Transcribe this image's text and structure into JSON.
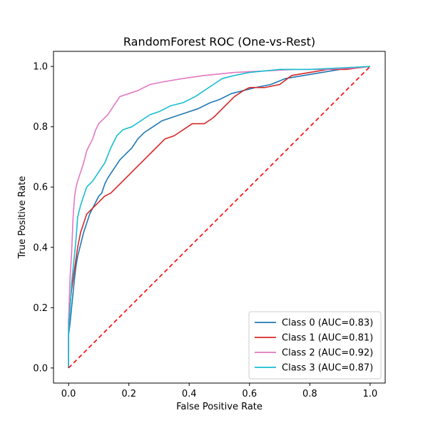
{
  "chart_data": {
    "type": "line",
    "title": "RandomForest ROC (One-vs-Rest)",
    "xlabel": "False Positive Rate",
    "ylabel": "True Positive Rate",
    "xlim": [
      -0.05,
      1.05
    ],
    "ylim": [
      -0.05,
      1.05
    ],
    "x_ticks": [
      0.0,
      0.2,
      0.4,
      0.6,
      0.8,
      1.0
    ],
    "y_ticks": [
      0.0,
      0.2,
      0.4,
      0.6,
      0.8,
      1.0
    ],
    "x_tick_labels": [
      "0.0",
      "0.2",
      "0.4",
      "0.6",
      "0.8",
      "1.0"
    ],
    "y_tick_labels": [
      "0.0",
      "0.2",
      "0.4",
      "0.6",
      "0.8",
      "1.0"
    ],
    "grid": false,
    "legend_position": "lower-right",
    "series": [
      {
        "name": "Class 0 (AUC=0.83)",
        "color": "#1f77b4",
        "points": [
          [
            0,
            0
          ],
          [
            0,
            0.11
          ],
          [
            0.005,
            0.15
          ],
          [
            0.01,
            0.2
          ],
          [
            0.015,
            0.25
          ],
          [
            0.02,
            0.3
          ],
          [
            0.025,
            0.34
          ],
          [
            0.03,
            0.37
          ],
          [
            0.04,
            0.41
          ],
          [
            0.05,
            0.45
          ],
          [
            0.06,
            0.48
          ],
          [
            0.07,
            0.51
          ],
          [
            0.08,
            0.53
          ],
          [
            0.09,
            0.55
          ],
          [
            0.1,
            0.57
          ],
          [
            0.11,
            0.58
          ],
          [
            0.12,
            0.61
          ],
          [
            0.13,
            0.63
          ],
          [
            0.15,
            0.66
          ],
          [
            0.17,
            0.69
          ],
          [
            0.19,
            0.71
          ],
          [
            0.21,
            0.73
          ],
          [
            0.23,
            0.76
          ],
          [
            0.25,
            0.78
          ],
          [
            0.28,
            0.8
          ],
          [
            0.31,
            0.82
          ],
          [
            0.34,
            0.83
          ],
          [
            0.37,
            0.84
          ],
          [
            0.4,
            0.85
          ],
          [
            0.43,
            0.86
          ],
          [
            0.47,
            0.88
          ],
          [
            0.5,
            0.89
          ],
          [
            0.54,
            0.91
          ],
          [
            0.58,
            0.92
          ],
          [
            0.62,
            0.93
          ],
          [
            0.67,
            0.94
          ],
          [
            0.72,
            0.96
          ],
          [
            0.78,
            0.97
          ],
          [
            0.84,
            0.98
          ],
          [
            0.9,
            0.99
          ],
          [
            0.95,
            0.995
          ],
          [
            1.0,
            1.0
          ]
        ]
      },
      {
        "name": "Class 1 (AUC=0.81)",
        "color": "#d62728",
        "points": [
          [
            0,
            0
          ],
          [
            0,
            0.16
          ],
          [
            0.01,
            0.26
          ],
          [
            0.02,
            0.33
          ],
          [
            0.03,
            0.4
          ],
          [
            0.04,
            0.45
          ],
          [
            0.05,
            0.48
          ],
          [
            0.06,
            0.51
          ],
          [
            0.08,
            0.53
          ],
          [
            0.1,
            0.55
          ],
          [
            0.12,
            0.57
          ],
          [
            0.14,
            0.58
          ],
          [
            0.16,
            0.6
          ],
          [
            0.18,
            0.62
          ],
          [
            0.2,
            0.64
          ],
          [
            0.22,
            0.66
          ],
          [
            0.24,
            0.68
          ],
          [
            0.26,
            0.7
          ],
          [
            0.28,
            0.72
          ],
          [
            0.3,
            0.74
          ],
          [
            0.32,
            0.76
          ],
          [
            0.35,
            0.77
          ],
          [
            0.38,
            0.79
          ],
          [
            0.41,
            0.81
          ],
          [
            0.45,
            0.81
          ],
          [
            0.48,
            0.83
          ],
          [
            0.5,
            0.85
          ],
          [
            0.52,
            0.87
          ],
          [
            0.55,
            0.9
          ],
          [
            0.58,
            0.92
          ],
          [
            0.6,
            0.93
          ],
          [
            0.65,
            0.93
          ],
          [
            0.7,
            0.94
          ],
          [
            0.74,
            0.97
          ],
          [
            0.8,
            0.98
          ],
          [
            0.86,
            0.99
          ],
          [
            0.92,
            0.99
          ],
          [
            1.0,
            1.0
          ]
        ]
      },
      {
        "name": "Class 2 (AUC=0.92)",
        "color": "#e377c2",
        "points": [
          [
            0,
            0
          ],
          [
            0,
            0.16
          ],
          [
            0.005,
            0.3
          ],
          [
            0.01,
            0.38
          ],
          [
            0.015,
            0.5
          ],
          [
            0.02,
            0.57
          ],
          [
            0.025,
            0.6
          ],
          [
            0.03,
            0.62
          ],
          [
            0.04,
            0.65
          ],
          [
            0.05,
            0.68
          ],
          [
            0.06,
            0.72
          ],
          [
            0.07,
            0.74
          ],
          [
            0.08,
            0.76
          ],
          [
            0.09,
            0.79
          ],
          [
            0.1,
            0.81
          ],
          [
            0.11,
            0.82
          ],
          [
            0.13,
            0.84
          ],
          [
            0.15,
            0.87
          ],
          [
            0.17,
            0.9
          ],
          [
            0.2,
            0.91
          ],
          [
            0.23,
            0.92
          ],
          [
            0.27,
            0.94
          ],
          [
            0.32,
            0.95
          ],
          [
            0.38,
            0.96
          ],
          [
            0.45,
            0.97
          ],
          [
            0.55,
            0.98
          ],
          [
            0.65,
            0.985
          ],
          [
            0.75,
            0.99
          ],
          [
            0.85,
            0.99
          ],
          [
            0.95,
            0.995
          ],
          [
            1.0,
            1.0
          ]
        ]
      },
      {
        "name": "Class 3 (AUC=0.87)",
        "color": "#17becf",
        "points": [
          [
            0,
            0
          ],
          [
            0,
            0.12
          ],
          [
            0.005,
            0.2
          ],
          [
            0.01,
            0.28
          ],
          [
            0.015,
            0.33
          ],
          [
            0.02,
            0.38
          ],
          [
            0.025,
            0.43
          ],
          [
            0.03,
            0.5
          ],
          [
            0.04,
            0.54
          ],
          [
            0.05,
            0.57
          ],
          [
            0.06,
            0.6
          ],
          [
            0.08,
            0.62
          ],
          [
            0.1,
            0.65
          ],
          [
            0.12,
            0.68
          ],
          [
            0.14,
            0.73
          ],
          [
            0.16,
            0.77
          ],
          [
            0.18,
            0.79
          ],
          [
            0.21,
            0.8
          ],
          [
            0.24,
            0.82
          ],
          [
            0.27,
            0.84
          ],
          [
            0.3,
            0.85
          ],
          [
            0.34,
            0.87
          ],
          [
            0.38,
            0.88
          ],
          [
            0.42,
            0.9
          ],
          [
            0.45,
            0.92
          ],
          [
            0.48,
            0.94
          ],
          [
            0.51,
            0.96
          ],
          [
            0.55,
            0.97
          ],
          [
            0.6,
            0.98
          ],
          [
            0.65,
            0.985
          ],
          [
            0.7,
            0.99
          ],
          [
            0.8,
            0.99
          ],
          [
            0.9,
            0.995
          ],
          [
            1.0,
            1.0
          ]
        ]
      }
    ],
    "reference_line": {
      "points": [
        [
          0,
          0
        ],
        [
          1,
          1
        ]
      ],
      "color": "#ff0000",
      "style": "dashed"
    }
  }
}
